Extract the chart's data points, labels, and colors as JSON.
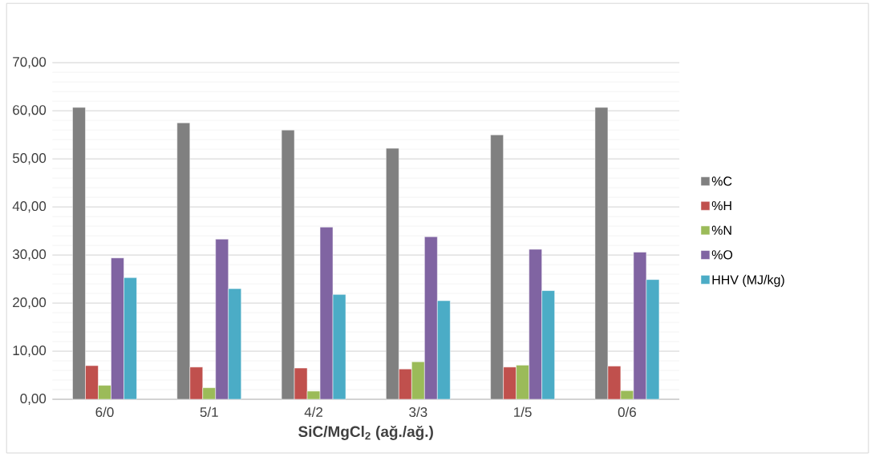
{
  "chart_data": {
    "type": "bar",
    "xlabel": "SiC/MgCl$_{2}$ (ağ./ağ.)",
    "categories": [
      "6/0",
      "5/1",
      "4/2",
      "3/3",
      "1/5",
      "0/6"
    ],
    "series": [
      {
        "name": "%C",
        "color": "#808080",
        "values": [
          60.7,
          57.5,
          56.0,
          52.2,
          55.0,
          60.7
        ]
      },
      {
        "name": "%H",
        "color": "#c0504d",
        "values": [
          7.0,
          6.7,
          6.5,
          6.3,
          6.7,
          6.9
        ]
      },
      {
        "name": "%N",
        "color": "#9bbb59",
        "values": [
          2.9,
          2.4,
          1.7,
          7.8,
          7.1,
          1.8
        ]
      },
      {
        "name": "%O",
        "color": "#8064a2",
        "values": [
          29.4,
          33.3,
          35.8,
          33.8,
          31.2,
          30.6
        ]
      },
      {
        "name": "HHV (MJ/kg)",
        "color": "#4bacc6",
        "values": [
          25.3,
          23.0,
          21.8,
          20.5,
          22.6,
          24.9
        ]
      }
    ],
    "ylim": [
      0,
      70
    ],
    "yticks": [
      {
        "value": 0,
        "label": "0,00"
      },
      {
        "value": 10,
        "label": "10,00"
      },
      {
        "value": 20,
        "label": "20,00"
      },
      {
        "value": 30,
        "label": "30,00"
      },
      {
        "value": 40,
        "label": "40,00"
      },
      {
        "value": 50,
        "label": "50,00"
      },
      {
        "value": 60,
        "label": "60,00"
      },
      {
        "value": 70,
        "label": "70,00"
      }
    ],
    "grid": "y",
    "legend": "right"
  }
}
